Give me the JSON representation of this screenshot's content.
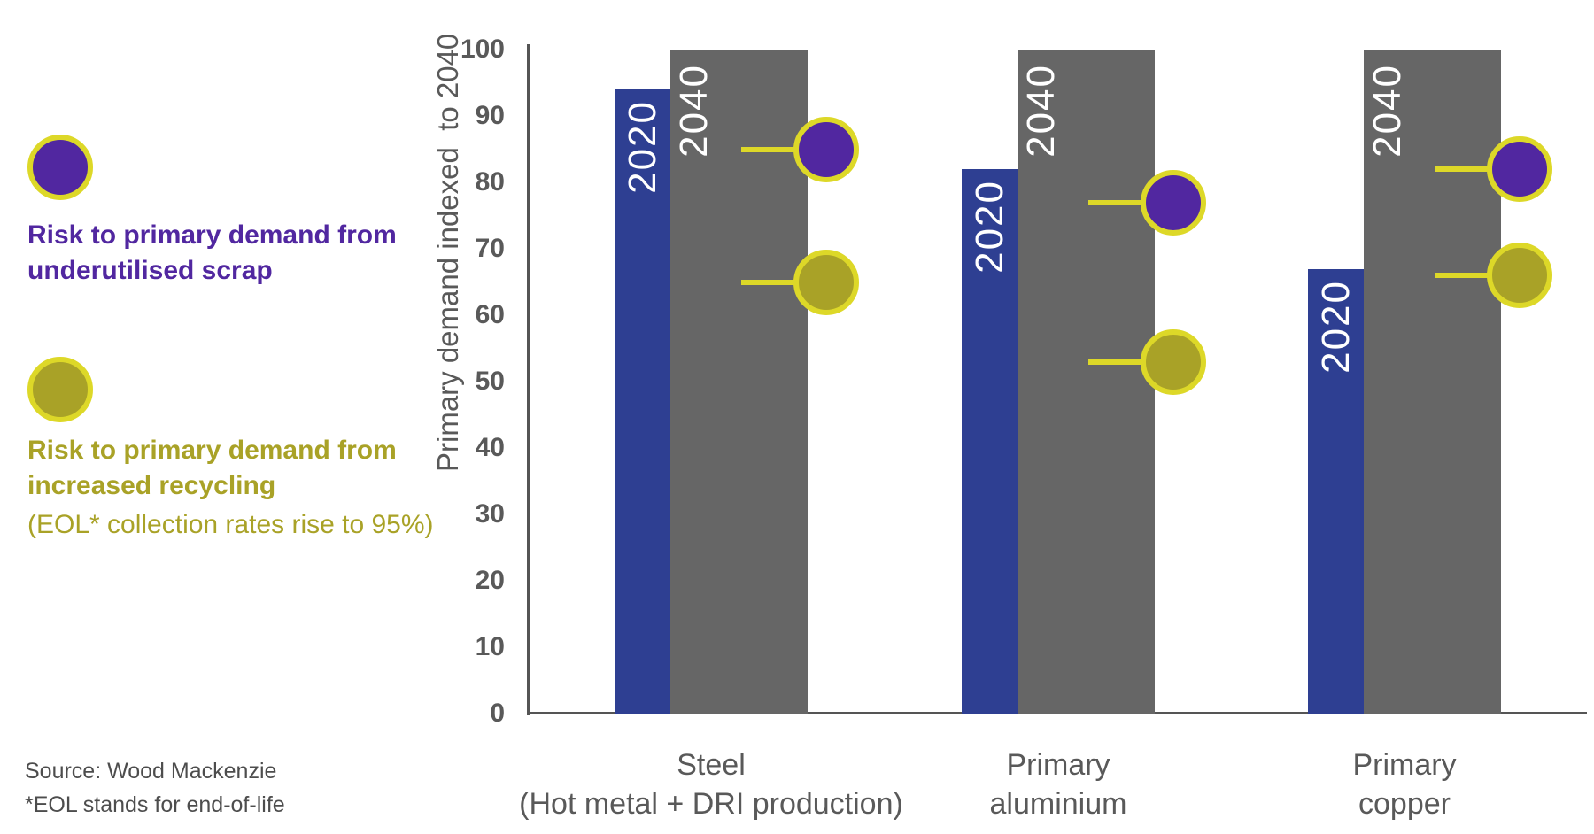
{
  "legend": {
    "items": [
      {
        "id": "scrap-risk",
        "label_lines": [
          "Risk to primary demand from",
          "underutilised scrap"
        ],
        "note": "",
        "text_color": "#5127a0",
        "marker_fill": "#5127a0",
        "marker_border": "#ddd828"
      },
      {
        "id": "recycling-risk",
        "label_lines": [
          "Risk to primary demand from",
          "increased recycling"
        ],
        "note": "(EOL* collection rates rise to 95%)",
        "text_color": "#a9a227",
        "marker_fill": "#a9a227",
        "marker_border": "#ddd828"
      }
    ]
  },
  "footnotes": {
    "source": "Source: Wood Mackenzie",
    "eol": "*EOL stands for end-of-life"
  },
  "colors": {
    "bar_2020": "#2e3f92",
    "bar_2040": "#666666",
    "purple_marker": "#5127a0",
    "olive_marker": "#a9a227",
    "yellow_accent": "#ddd828",
    "axis": "#555555",
    "axis_text": "#595959"
  },
  "chart_data": {
    "type": "bar",
    "title": "",
    "xlabel": "",
    "ylabel": "Primary demand indexed  to 2040",
    "ylim": [
      0,
      100
    ],
    "ytick_step": 10,
    "grid": false,
    "legend_position": "left",
    "categories": [
      {
        "id": "steel",
        "label_lines": [
          "Steel",
          "(Hot metal + DRI production)"
        ]
      },
      {
        "id": "aluminium",
        "label_lines": [
          "Primary",
          "aluminium"
        ]
      },
      {
        "id": "copper",
        "label_lines": [
          "Primary",
          "copper"
        ]
      }
    ],
    "series": [
      {
        "id": "2020",
        "name": "2020",
        "type": "bar",
        "color": "#2e3f92",
        "values": [
          94,
          82,
          67
        ]
      },
      {
        "id": "2040",
        "name": "2040",
        "type": "bar",
        "color": "#666666",
        "values": [
          100,
          100,
          100
        ]
      },
      {
        "id": "scrap-risk",
        "name": "Risk to primary demand from underutilised scrap",
        "type": "lollipop",
        "color": "#5127a0",
        "border_color": "#ddd828",
        "values": [
          85,
          77,
          82
        ]
      },
      {
        "id": "recycling-risk",
        "name": "Risk to primary demand from increased recycling",
        "type": "lollipop",
        "color": "#a9a227",
        "border_color": "#ddd828",
        "values": [
          65,
          53,
          66
        ]
      }
    ]
  }
}
